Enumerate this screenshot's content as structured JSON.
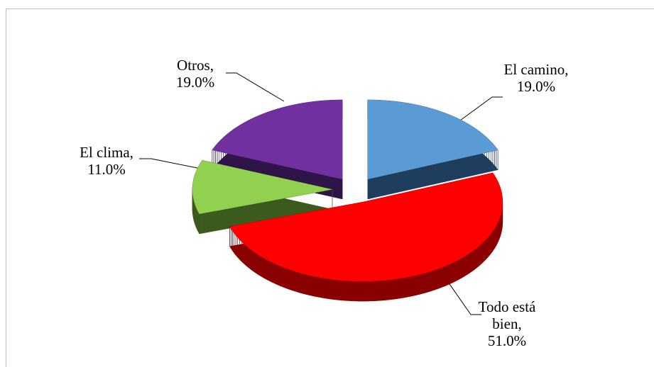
{
  "chart_data": {
    "type": "pie3d",
    "categories": [
      "El camino,",
      "Todo está bien,",
      "El clima,",
      "Otros,"
    ],
    "values": [
      19,
      51,
      11,
      19
    ],
    "value_labels": [
      "19.0%",
      "51.0%",
      "11.0%",
      "19.0%"
    ],
    "colors": [
      "#5b9bd5",
      "#ff0000",
      "#92d050",
      "#7030a0"
    ],
    "side_colors": [
      "#1f3d5c",
      "#8a0000",
      "#3c5a1e",
      "#2e1448"
    ]
  }
}
